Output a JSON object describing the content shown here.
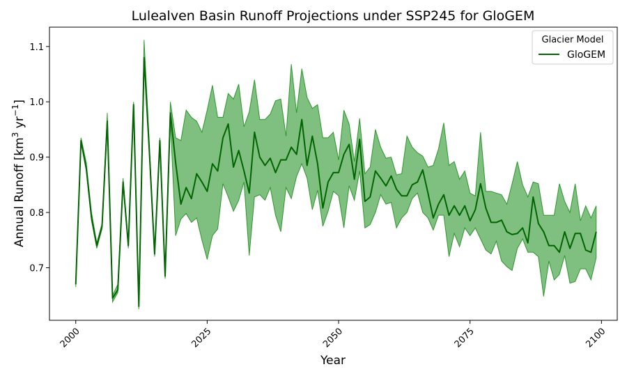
{
  "chart_data": {
    "type": "line",
    "title": "Lulealven Basin Runoff Projections under SSP245 for GloGEM",
    "xlabel": "Year",
    "ylabel": "Annual Runoff [km",
    "ylabel_sup1": "3",
    "ylabel_mid": " yr",
    "ylabel_sup2": "−1",
    "ylabel_end": "]",
    "xlim": [
      1995,
      2103
    ],
    "ylim": [
      0.605,
      1.135
    ],
    "x_ticks": [
      2000,
      2025,
      2050,
      2075,
      2100
    ],
    "y_ticks": [
      0.7,
      0.8,
      0.9,
      1.0,
      1.1
    ],
    "y_tick_labels": [
      "0.7",
      "0.8",
      "0.9",
      "1.0",
      "1.1"
    ],
    "grid": false,
    "legend": {
      "title": "Glacier Model",
      "placement": "top-right"
    },
    "series": [
      {
        "name": "GloGEM",
        "color": "#006400",
        "band_color": "#008000",
        "x": [
          2000,
          2001,
          2002,
          2003,
          2004,
          2005,
          2006,
          2007,
          2008,
          2009,
          2010,
          2011,
          2012,
          2013,
          2014,
          2015,
          2016,
          2017,
          2018,
          2019,
          2020,
          2021,
          2022,
          2023,
          2024,
          2025,
          2026,
          2027,
          2028,
          2029,
          2030,
          2031,
          2032,
          2033,
          2034,
          2035,
          2036,
          2037,
          2038,
          2039,
          2040,
          2041,
          2042,
          2043,
          2044,
          2045,
          2046,
          2047,
          2048,
          2049,
          2050,
          2051,
          2052,
          2053,
          2054,
          2055,
          2056,
          2057,
          2058,
          2059,
          2060,
          2061,
          2062,
          2063,
          2064,
          2065,
          2066,
          2067,
          2068,
          2069,
          2070,
          2071,
          2072,
          2073,
          2074,
          2075,
          2076,
          2077,
          2078,
          2079,
          2080,
          2081,
          2082,
          2083,
          2084,
          2085,
          2086,
          2087,
          2088,
          2089,
          2090,
          2091,
          2092,
          2093,
          2094,
          2095,
          2096,
          2097,
          2098,
          2099
        ],
        "mean": [
          0.67,
          0.93,
          0.88,
          0.79,
          0.74,
          0.775,
          0.965,
          0.645,
          0.66,
          0.855,
          0.74,
          0.995,
          0.63,
          1.08,
          0.91,
          0.725,
          0.93,
          0.685,
          0.98,
          0.89,
          0.815,
          0.845,
          0.825,
          0.87,
          0.855,
          0.838,
          0.888,
          0.875,
          0.935,
          0.96,
          0.882,
          0.912,
          0.875,
          0.835,
          0.945,
          0.9,
          0.885,
          0.898,
          0.872,
          0.895,
          0.895,
          0.918,
          0.905,
          0.968,
          0.885,
          0.938,
          0.888,
          0.808,
          0.855,
          0.872,
          0.872,
          0.905,
          0.923,
          0.86,
          0.932,
          0.82,
          0.828,
          0.875,
          0.862,
          0.848,
          0.866,
          0.842,
          0.83,
          0.83,
          0.85,
          0.855,
          0.877,
          0.835,
          0.79,
          0.815,
          0.832,
          0.795,
          0.812,
          0.795,
          0.812,
          0.785,
          0.805,
          0.852,
          0.808,
          0.782,
          0.782,
          0.786,
          0.765,
          0.76,
          0.762,
          0.772,
          0.745,
          0.828,
          0.78,
          0.765,
          0.74,
          0.74,
          0.728,
          0.765,
          0.735,
          0.762,
          0.762,
          0.732,
          0.728,
          0.765
        ],
        "upper": [
          0.675,
          0.935,
          0.89,
          0.8,
          0.745,
          0.78,
          0.98,
          0.65,
          0.67,
          0.862,
          0.745,
          1.0,
          0.635,
          1.112,
          0.925,
          0.73,
          0.935,
          0.69,
          1.0,
          0.935,
          0.93,
          0.985,
          0.972,
          0.965,
          0.945,
          0.985,
          1.03,
          0.972,
          0.972,
          1.015,
          1.005,
          1.032,
          0.955,
          0.982,
          1.04,
          0.968,
          0.968,
          0.978,
          1.002,
          1.005,
          0.938,
          1.068,
          0.98,
          1.06,
          1.008,
          0.988,
          0.995,
          0.935,
          0.935,
          0.945,
          0.895,
          0.985,
          0.96,
          0.892,
          0.97,
          0.87,
          0.882,
          0.95,
          0.918,
          0.898,
          0.9,
          0.868,
          0.87,
          0.938,
          0.918,
          0.908,
          0.902,
          0.882,
          0.885,
          0.915,
          0.962,
          0.885,
          0.892,
          0.86,
          0.875,
          0.835,
          0.83,
          0.945,
          0.838,
          0.838,
          0.835,
          0.832,
          0.815,
          0.852,
          0.892,
          0.85,
          0.828,
          0.855,
          0.852,
          0.795,
          0.795,
          0.795,
          0.852,
          0.82,
          0.8,
          0.852,
          0.785,
          0.812,
          0.79,
          0.812
        ],
        "lower": [
          0.665,
          0.925,
          0.875,
          0.785,
          0.735,
          0.77,
          0.955,
          0.638,
          0.655,
          0.85,
          0.735,
          0.99,
          0.625,
          1.075,
          0.905,
          0.72,
          0.925,
          0.68,
          0.965,
          0.758,
          0.788,
          0.798,
          0.782,
          0.79,
          0.75,
          0.715,
          0.758,
          0.77,
          0.852,
          0.828,
          0.802,
          0.822,
          0.855,
          0.722,
          0.828,
          0.832,
          0.822,
          0.845,
          0.795,
          0.765,
          0.845,
          0.825,
          0.865,
          0.888,
          0.862,
          0.805,
          0.84,
          0.775,
          0.802,
          0.838,
          0.83,
          0.772,
          0.848,
          0.822,
          0.875,
          0.772,
          0.778,
          0.8,
          0.832,
          0.815,
          0.818,
          0.772,
          0.79,
          0.8,
          0.825,
          0.835,
          0.8,
          0.79,
          0.768,
          0.795,
          0.795,
          0.72,
          0.762,
          0.738,
          0.772,
          0.758,
          0.772,
          0.752,
          0.732,
          0.725,
          0.748,
          0.712,
          0.702,
          0.695,
          0.735,
          0.752,
          0.728,
          0.728,
          0.72,
          0.648,
          0.712,
          0.678,
          0.688,
          0.722,
          0.672,
          0.675,
          0.698,
          0.698,
          0.678,
          0.718
        ]
      }
    ]
  }
}
